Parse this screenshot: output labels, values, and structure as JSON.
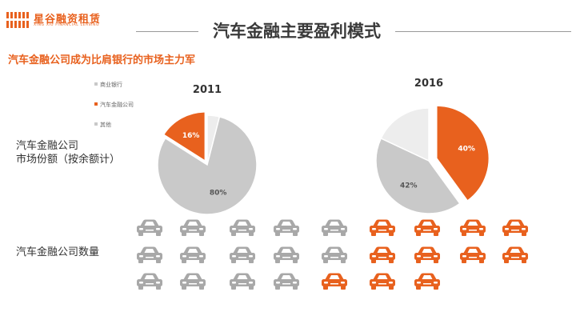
{
  "header": {
    "logo_text": "星谷融资租赁",
    "logo_subtext": "XING XIU FINANCIAL LEASING",
    "title": "汽车金融主要盈利模式"
  },
  "subtitle": "汽车金融公司成为比肩银行的市场主力军",
  "legend": [
    {
      "label": "商业银行",
      "color": "#C9C9C9"
    },
    {
      "label": "汽车金融公司",
      "color": "#E8611E"
    },
    {
      "label": "其他",
      "color": "#EDEDED"
    }
  ],
  "share_label_line1": "汽车金融公司",
  "share_label_line2": "市场份额（按余额计）",
  "count_label": "汽车金融公司数量",
  "colors": {
    "accent": "#E8611E",
    "gray": "#C9C9C9",
    "light": "#EDEDED"
  },
  "chart_data": [
    {
      "type": "pie",
      "title": "2011",
      "slices": [
        {
          "name": "商业银行",
          "value": 80,
          "label": "80%",
          "color": "#C9C9C9"
        },
        {
          "name": "汽车金融公司",
          "value": 16,
          "label": "16%",
          "color": "#E8611E",
          "exploded": true
        },
        {
          "name": "其他",
          "value": 4,
          "label": "",
          "color": "#EDEDED"
        }
      ]
    },
    {
      "type": "pie",
      "title": "2016",
      "slices": [
        {
          "name": "汽车金融公司",
          "value": 40,
          "label": "40%",
          "color": "#E8611E",
          "exploded": true
        },
        {
          "name": "商业银行",
          "value": 42,
          "label": "42%",
          "color": "#C9C9C9"
        },
        {
          "name": "其他",
          "value": 18,
          "label": "",
          "color": "#EDEDED"
        }
      ]
    },
    {
      "type": "pictogram",
      "rows": [
        {
          "gray": 5,
          "orange": 4
        },
        {
          "gray": 5,
          "orange": 4
        },
        {
          "gray": 4,
          "orange": 3
        }
      ]
    }
  ]
}
